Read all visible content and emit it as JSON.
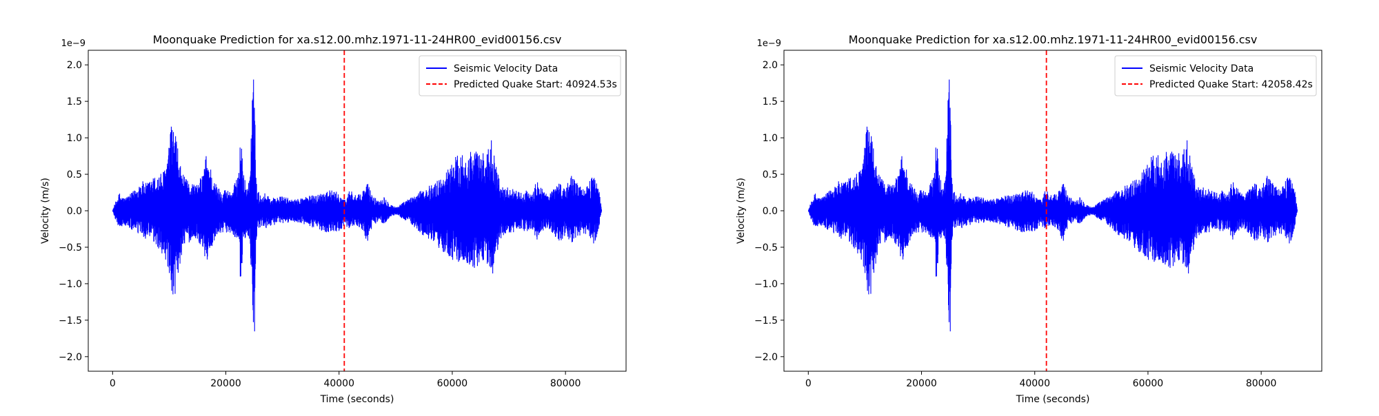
{
  "colors": {
    "signal": "#0000ff",
    "prediction": "#ff0000",
    "axis": "#000000",
    "background": "#ffffff"
  },
  "chart_data": [
    {
      "type": "line",
      "title": "Moonquake Prediction for xa.s12.00.mhz.1971-11-24HR00_evid00156.csv",
      "xlabel": "Time (seconds)",
      "ylabel": "Velocity (m/s)",
      "y_offset_label": "1e−9",
      "xlim": [
        -4300,
        90700
      ],
      "ylim": [
        -2.2e-09,
        2.2e-09
      ],
      "x_ticks": [
        0,
        20000,
        40000,
        60000,
        80000
      ],
      "x_tick_labels": [
        "0",
        "20000",
        "40000",
        "60000",
        "80000"
      ],
      "y_ticks": [
        -2.0,
        -1.5,
        -1.0,
        -0.5,
        0.0,
        0.5,
        1.0,
        1.5,
        2.0
      ],
      "y_tick_labels": [
        "−2.0",
        "−1.5",
        "−1.0",
        "−0.5",
        "0.0",
        "0.5",
        "1.0",
        "1.5",
        "2.0"
      ],
      "grid": false,
      "legend_position": "upper-right",
      "series": [
        {
          "name": "Seismic Velocity Data",
          "style": "solid",
          "envelope": {
            "x": [
              0,
              300,
              1200,
              2000,
              3000,
              4000,
              5000,
              6000,
              7000,
              8000,
              9000,
              9800,
              10400,
              11000,
              11600,
              12200,
              12800,
              13400,
              14000,
              15000,
              16000,
              16500,
              17000,
              18000,
              19000,
              20000,
              21000,
              22000,
              22600,
              23100,
              23600,
              24200,
              24700,
              25100,
              25300,
              25600,
              26200,
              27000,
              28000,
              30000,
              32000,
              34000,
              36000,
              38000,
              40000,
              41000,
              42000,
              43000,
              44000,
              45000,
              46000,
              47000,
              48000,
              49000,
              50000,
              51000,
              52000,
              53000,
              54000,
              55000,
              56000,
              57000,
              58000,
              59000,
              60000,
              61000,
              62000,
              63000,
              64000,
              65000,
              66000,
              67000,
              68000,
              69000,
              70000,
              71000,
              72000,
              73000,
              74000,
              75000,
              76000,
              77000,
              78000,
              79000,
              80000,
              81000,
              82000,
              83000,
              84000,
              85000,
              86000,
              86400
            ],
            "upper": [
              0.0,
              0.08,
              0.25,
              0.18,
              0.22,
              0.3,
              0.42,
              0.38,
              0.45,
              0.5,
              0.55,
              0.8,
              1.2,
              1.15,
              0.8,
              0.55,
              0.45,
              0.4,
              0.4,
              0.35,
              0.55,
              0.78,
              0.7,
              0.4,
              0.3,
              0.3,
              0.28,
              0.45,
              1.02,
              0.6,
              0.3,
              0.45,
              1.62,
              2.03,
              0.5,
              0.3,
              0.2,
              0.25,
              0.18,
              0.2,
              0.15,
              0.2,
              0.22,
              0.3,
              0.25,
              0.15,
              0.32,
              0.2,
              0.25,
              0.4,
              0.2,
              0.15,
              0.2,
              0.1,
              0.05,
              0.1,
              0.15,
              0.2,
              0.25,
              0.3,
              0.35,
              0.4,
              0.45,
              0.55,
              0.7,
              0.78,
              0.8,
              0.82,
              0.85,
              0.78,
              0.8,
              1.02,
              0.55,
              0.3,
              0.35,
              0.3,
              0.25,
              0.3,
              0.2,
              0.45,
              0.3,
              0.2,
              0.35,
              0.4,
              0.3,
              0.5,
              0.42,
              0.3,
              0.35,
              0.55,
              0.25,
              0.0
            ],
            "lower": [
              0.0,
              -0.08,
              -0.25,
              -0.2,
              -0.25,
              -0.3,
              -0.35,
              -0.4,
              -0.42,
              -0.55,
              -0.6,
              -0.9,
              -1.36,
              -1.2,
              -0.9,
              -0.6,
              -0.5,
              -0.45,
              -0.4,
              -0.4,
              -0.55,
              -0.72,
              -0.65,
              -0.4,
              -0.3,
              -0.3,
              -0.3,
              -0.4,
              -1.02,
              -0.55,
              -0.3,
              -0.4,
              -1.55,
              -2.0,
              -0.5,
              -0.3,
              -0.22,
              -0.25,
              -0.2,
              -0.18,
              -0.15,
              -0.2,
              -0.25,
              -0.3,
              -0.28,
              -0.2,
              -0.25,
              -0.2,
              -0.25,
              -0.45,
              -0.2,
              -0.15,
              -0.18,
              -0.1,
              -0.05,
              -0.1,
              -0.15,
              -0.2,
              -0.3,
              -0.35,
              -0.4,
              -0.5,
              -0.55,
              -0.6,
              -0.68,
              -0.7,
              -0.72,
              -0.8,
              -0.8,
              -0.72,
              -0.7,
              -0.95,
              -0.55,
              -0.35,
              -0.3,
              -0.3,
              -0.25,
              -0.3,
              -0.25,
              -0.4,
              -0.3,
              -0.25,
              -0.35,
              -0.45,
              -0.35,
              -0.45,
              -0.4,
              -0.35,
              -0.3,
              -0.5,
              -0.22,
              0.0
            ],
            "scale": 1e-09
          }
        },
        {
          "name": "Predicted Quake Start: 40924.53s",
          "style": "dashed",
          "x": 40924.53
        }
      ]
    },
    {
      "type": "line",
      "title": "Moonquake Prediction for xa.s12.00.mhz.1971-11-24HR00_evid00156.csv",
      "xlabel": "Time (seconds)",
      "ylabel": "Velocity (m/s)",
      "y_offset_label": "1e−9",
      "xlim": [
        -4300,
        90700
      ],
      "ylim": [
        -2.2e-09,
        2.2e-09
      ],
      "x_ticks": [
        0,
        20000,
        40000,
        60000,
        80000
      ],
      "x_tick_labels": [
        "0",
        "20000",
        "40000",
        "60000",
        "80000"
      ],
      "y_ticks": [
        -2.0,
        -1.5,
        -1.0,
        -0.5,
        0.0,
        0.5,
        1.0,
        1.5,
        2.0
      ],
      "y_tick_labels": [
        "−2.0",
        "−1.5",
        "−1.0",
        "−0.5",
        "0.0",
        "0.5",
        "1.0",
        "1.5",
        "2.0"
      ],
      "grid": false,
      "legend_position": "upper-right",
      "series": [
        {
          "name": "Seismic Velocity Data",
          "style": "solid",
          "envelope": {
            "x": [
              0,
              300,
              1200,
              2000,
              3000,
              4000,
              5000,
              6000,
              7000,
              8000,
              9000,
              9800,
              10400,
              11000,
              11600,
              12200,
              12800,
              13400,
              14000,
              15000,
              16000,
              16500,
              17000,
              18000,
              19000,
              20000,
              21000,
              22000,
              22600,
              23100,
              23600,
              24200,
              24700,
              25100,
              25300,
              25600,
              26200,
              27000,
              28000,
              30000,
              32000,
              34000,
              36000,
              38000,
              40000,
              41000,
              42000,
              43000,
              44000,
              45000,
              46000,
              47000,
              48000,
              49000,
              50000,
              51000,
              52000,
              53000,
              54000,
              55000,
              56000,
              57000,
              58000,
              59000,
              60000,
              61000,
              62000,
              63000,
              64000,
              65000,
              66000,
              67000,
              68000,
              69000,
              70000,
              71000,
              72000,
              73000,
              74000,
              75000,
              76000,
              77000,
              78000,
              79000,
              80000,
              81000,
              82000,
              83000,
              84000,
              85000,
              86000,
              86400
            ],
            "upper": [
              0.0,
              0.08,
              0.25,
              0.18,
              0.22,
              0.3,
              0.42,
              0.38,
              0.45,
              0.5,
              0.55,
              0.8,
              1.2,
              1.15,
              0.8,
              0.55,
              0.45,
              0.4,
              0.4,
              0.35,
              0.55,
              0.78,
              0.7,
              0.4,
              0.3,
              0.3,
              0.28,
              0.45,
              1.02,
              0.6,
              0.3,
              0.45,
              1.62,
              2.03,
              0.5,
              0.3,
              0.2,
              0.25,
              0.18,
              0.2,
              0.15,
              0.2,
              0.22,
              0.3,
              0.25,
              0.15,
              0.32,
              0.2,
              0.25,
              0.4,
              0.2,
              0.15,
              0.2,
              0.1,
              0.05,
              0.1,
              0.15,
              0.2,
              0.25,
              0.3,
              0.35,
              0.4,
              0.45,
              0.55,
              0.7,
              0.78,
              0.8,
              0.82,
              0.85,
              0.78,
              0.8,
              1.02,
              0.55,
              0.3,
              0.35,
              0.3,
              0.25,
              0.3,
              0.2,
              0.45,
              0.3,
              0.2,
              0.35,
              0.4,
              0.3,
              0.5,
              0.42,
              0.3,
              0.35,
              0.55,
              0.25,
              0.0
            ],
            "lower": [
              0.0,
              -0.08,
              -0.25,
              -0.2,
              -0.25,
              -0.3,
              -0.35,
              -0.4,
              -0.42,
              -0.55,
              -0.6,
              -0.9,
              -1.36,
              -1.2,
              -0.9,
              -0.6,
              -0.5,
              -0.45,
              -0.4,
              -0.4,
              -0.55,
              -0.72,
              -0.65,
              -0.4,
              -0.3,
              -0.3,
              -0.3,
              -0.4,
              -1.02,
              -0.55,
              -0.3,
              -0.4,
              -1.55,
              -2.0,
              -0.5,
              -0.3,
              -0.22,
              -0.25,
              -0.2,
              -0.18,
              -0.15,
              -0.2,
              -0.25,
              -0.3,
              -0.28,
              -0.2,
              -0.25,
              -0.2,
              -0.25,
              -0.45,
              -0.2,
              -0.15,
              -0.18,
              -0.1,
              -0.05,
              -0.1,
              -0.15,
              -0.2,
              -0.3,
              -0.35,
              -0.4,
              -0.5,
              -0.55,
              -0.6,
              -0.68,
              -0.7,
              -0.72,
              -0.8,
              -0.8,
              -0.72,
              -0.7,
              -0.95,
              -0.55,
              -0.35,
              -0.3,
              -0.3,
              -0.25,
              -0.3,
              -0.25,
              -0.4,
              -0.3,
              -0.25,
              -0.35,
              -0.45,
              -0.35,
              -0.45,
              -0.4,
              -0.35,
              -0.3,
              -0.5,
              -0.22,
              0.0
            ],
            "scale": 1e-09
          }
        },
        {
          "name": "Predicted Quake Start: 42058.42s",
          "style": "dashed",
          "x": 42058.42
        }
      ]
    }
  ]
}
